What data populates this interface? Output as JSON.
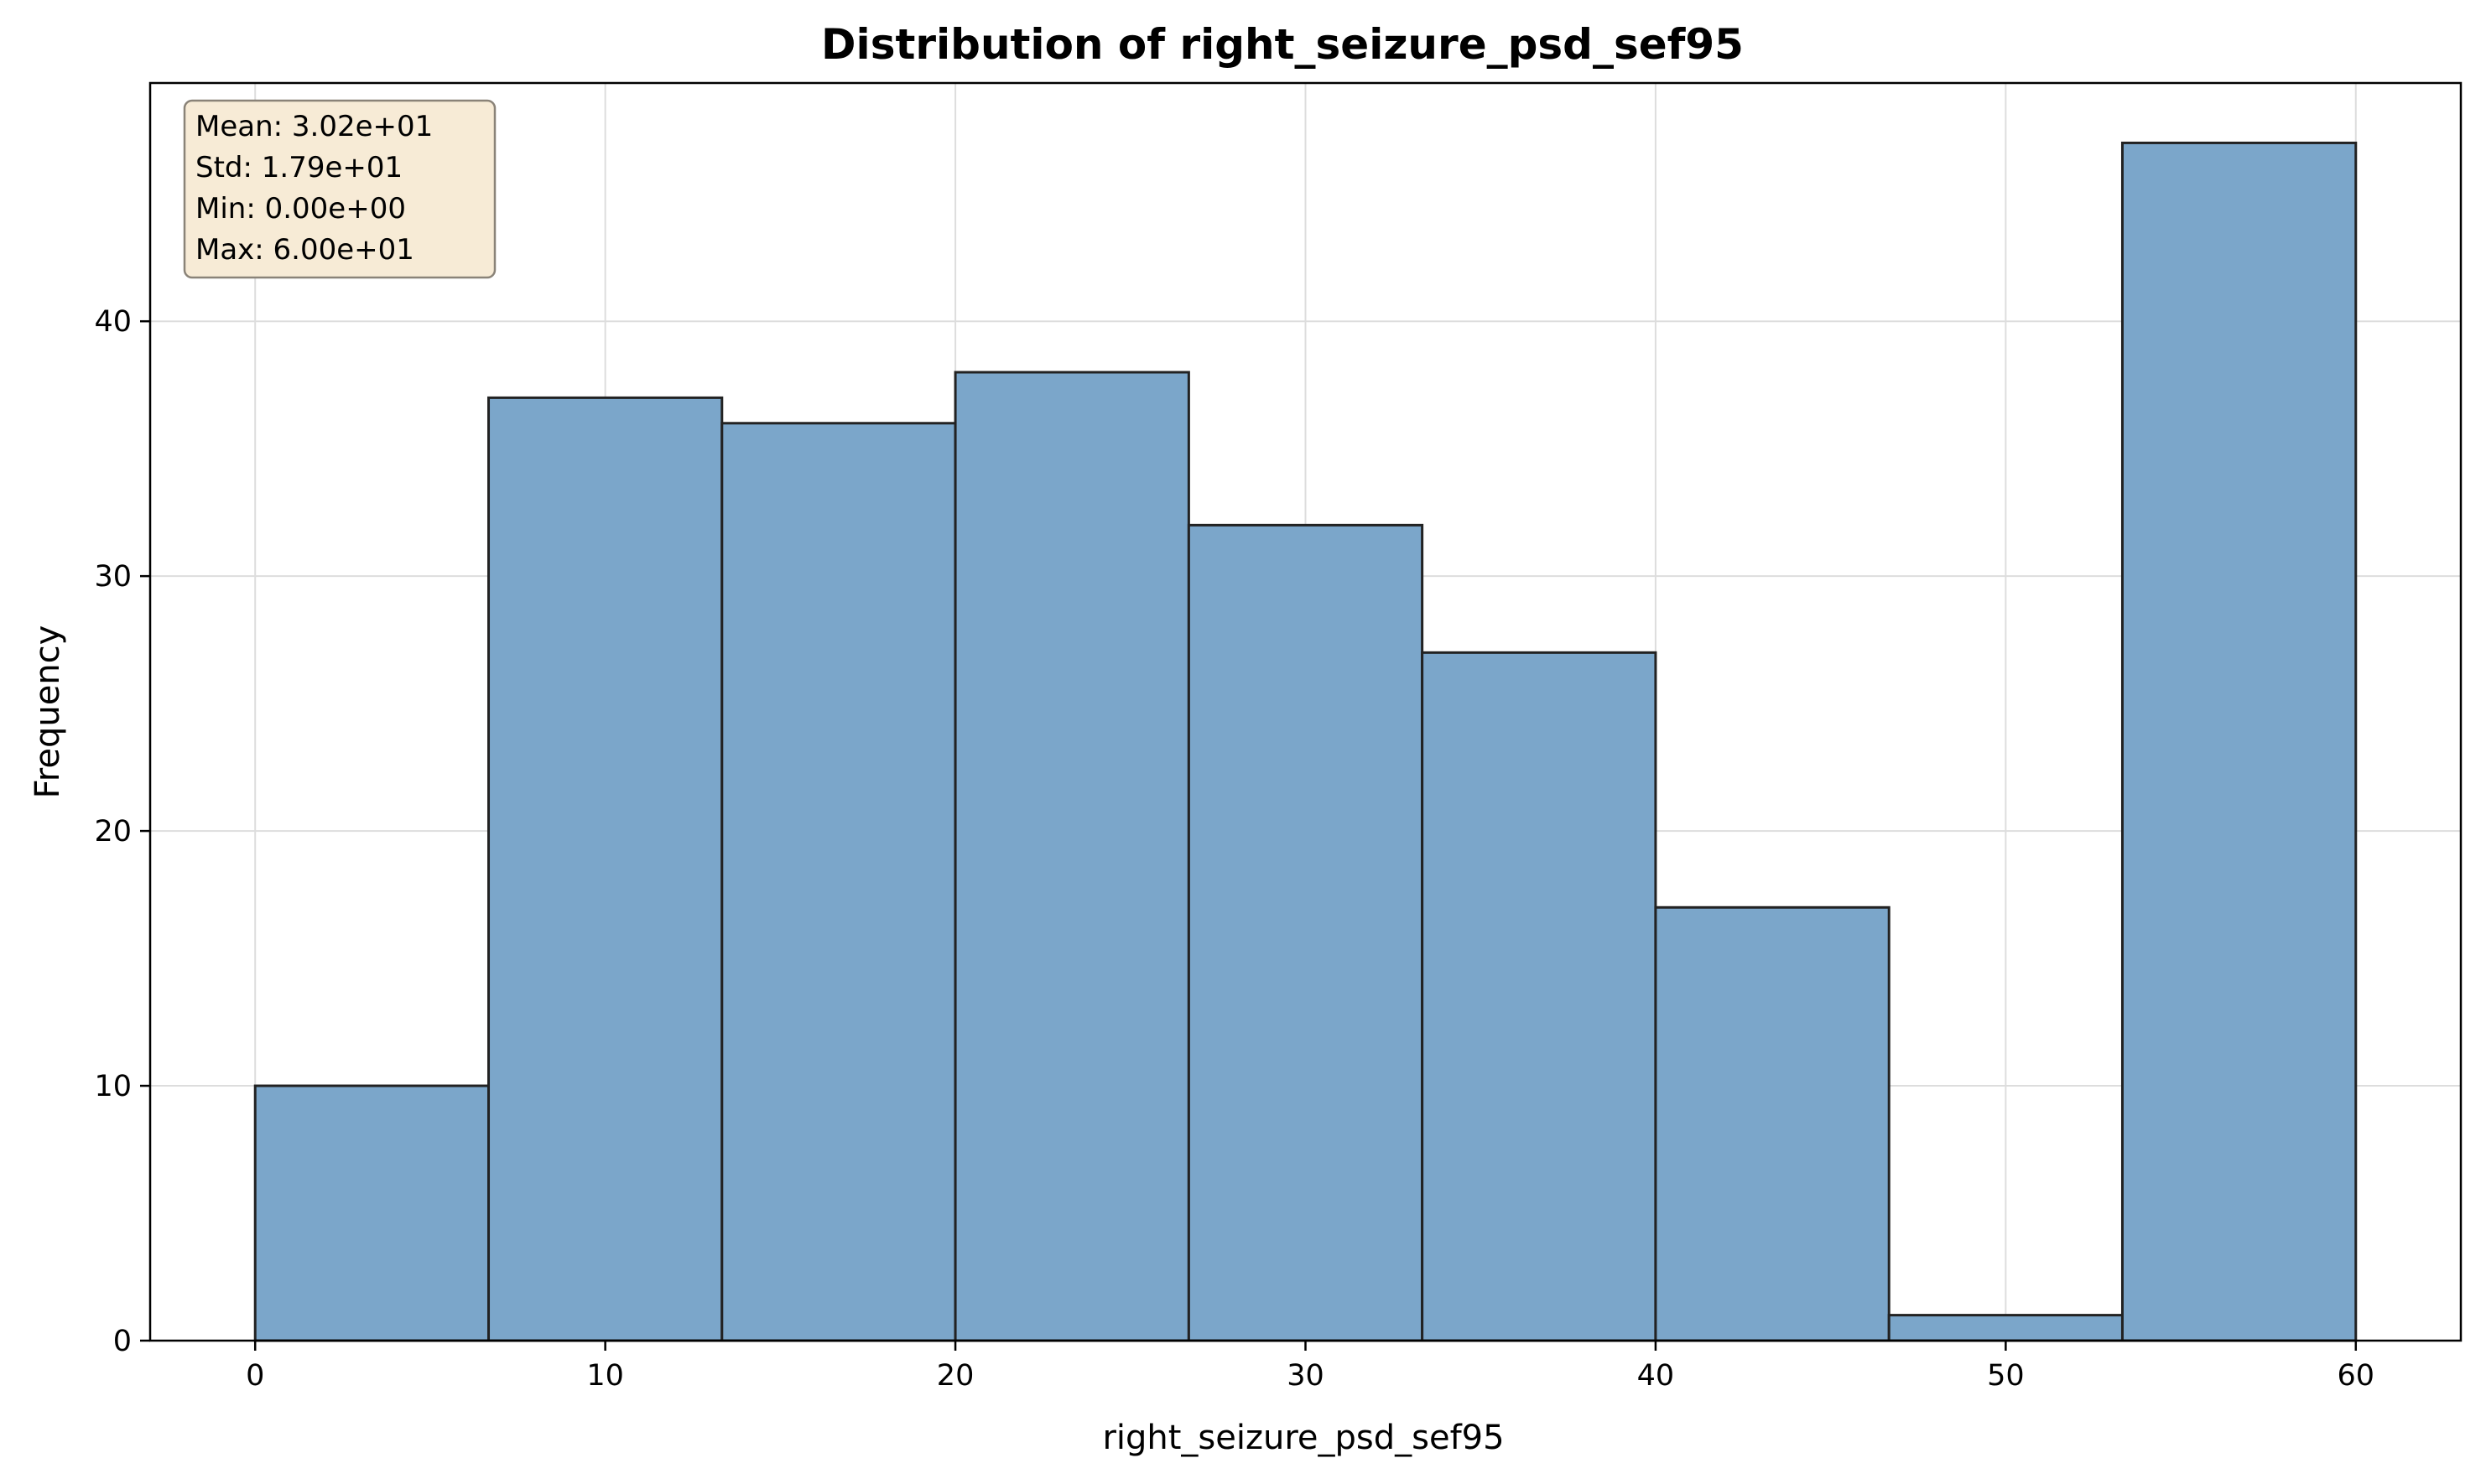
{
  "chart_data": {
    "type": "bar",
    "title": "Distribution of right_seizure_psd_sef95",
    "xlabel": "right_seizure_psd_sef95",
    "ylabel": "Frequency",
    "bin_edges": [
      0,
      6.667,
      13.333,
      20,
      26.667,
      33.333,
      40,
      46.667,
      53.333,
      60
    ],
    "values": [
      10,
      37,
      36,
      38,
      32,
      27,
      17,
      1,
      47
    ],
    "xlim": [
      -3,
      63
    ],
    "ylim": [
      0,
      49.35
    ],
    "xticks": [
      0,
      10,
      20,
      30,
      40,
      50,
      60
    ],
    "yticks": [
      0,
      10,
      20,
      30,
      40
    ],
    "grid": true,
    "stats_box": {
      "position": "top-left",
      "lines": [
        "Mean: 3.02e+01",
        "Std: 1.79e+01",
        "Min: 0.00e+00",
        "Max: 6.00e+01"
      ]
    },
    "colors": {
      "bar_fill": "#7ba6ca",
      "bar_edge": "#222222",
      "stats_box_fill": "#f7ebd6",
      "stats_box_edge": "#8a8378",
      "grid": "#dddddd"
    }
  }
}
